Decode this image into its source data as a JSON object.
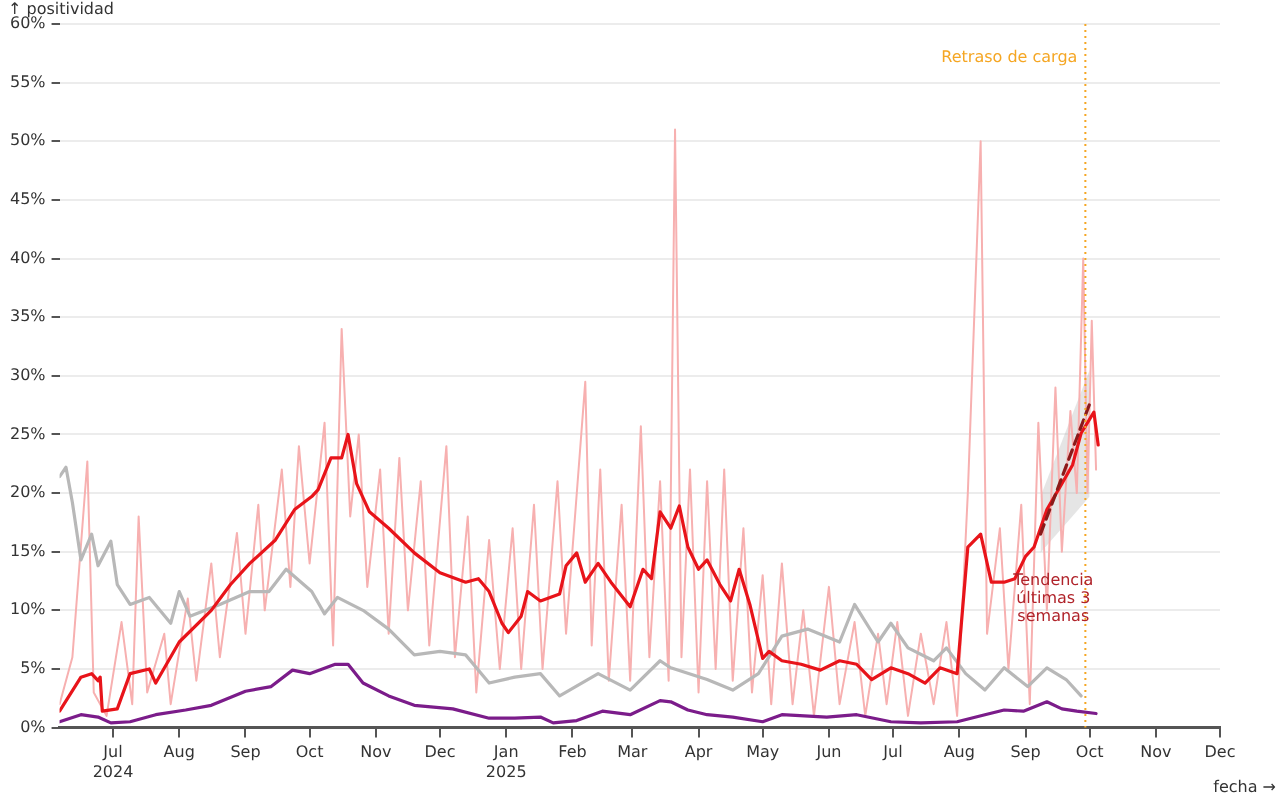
{
  "chart_data": {
    "type": "line",
    "ylabel": "↑ positividad",
    "xlabel": "fecha →",
    "legend": false,
    "grid": "y",
    "marker": "none",
    "xlim": [
      "2024-06-06",
      "2025-12-01"
    ],
    "xticks": [
      {
        "value": "2024-07-01",
        "label": "Jul\n2024"
      },
      {
        "value": "2024-08-01",
        "label": "Aug"
      },
      {
        "value": "2024-09-01",
        "label": "Sep"
      },
      {
        "value": "2024-10-01",
        "label": "Oct"
      },
      {
        "value": "2024-11-01",
        "label": "Nov"
      },
      {
        "value": "2024-12-01",
        "label": "Dec"
      },
      {
        "value": "2025-01-01",
        "label": "Jan\n2025"
      },
      {
        "value": "2025-02-01",
        "label": "Feb"
      },
      {
        "value": "2025-03-01",
        "label": "Mar"
      },
      {
        "value": "2025-04-01",
        "label": "Apr"
      },
      {
        "value": "2025-05-01",
        "label": "May"
      },
      {
        "value": "2025-06-01",
        "label": "Jun"
      },
      {
        "value": "2025-07-01",
        "label": "Jul"
      },
      {
        "value": "2025-08-01",
        "label": "Aug"
      },
      {
        "value": "2025-09-01",
        "label": "Sep"
      },
      {
        "value": "2025-10-01",
        "label": "Oct"
      },
      {
        "value": "2025-11-01",
        "label": "Nov"
      },
      {
        "value": "2025-12-01",
        "label": "Dec"
      }
    ],
    "ylim": [
      0,
      60
    ],
    "yticks": [
      {
        "value": 0,
        "label": "0%"
      },
      {
        "value": 5,
        "label": "5%"
      },
      {
        "value": 10,
        "label": "10%"
      },
      {
        "value": 15,
        "label": "15%"
      },
      {
        "value": 20,
        "label": "20%"
      },
      {
        "value": 25,
        "label": "25%"
      },
      {
        "value": 30,
        "label": "30%"
      },
      {
        "value": 35,
        "label": "35%"
      },
      {
        "value": 40,
        "label": "40%"
      },
      {
        "value": 45,
        "label": "45%"
      },
      {
        "value": 50,
        "label": "50%"
      },
      {
        "value": 55,
        "label": "55%"
      },
      {
        "value": 60,
        "label": "60%"
      }
    ],
    "series": [
      {
        "color": "#f7b0b0",
        "x": [
          "2024-06-06",
          "2024-06-12",
          "2024-06-19",
          "2024-06-22",
          "2024-06-28",
          "2024-07-05",
          "2024-07-10",
          "2024-07-13",
          "2024-07-17",
          "2024-07-25",
          "2024-07-28",
          "2024-08-05",
          "2024-08-09",
          "2024-08-16",
          "2024-08-20",
          "2024-08-28",
          "2024-09-01",
          "2024-09-07",
          "2024-09-10",
          "2024-09-18",
          "2024-09-22",
          "2024-09-26",
          "2024-10-01",
          "2024-10-08",
          "2024-10-12",
          "2024-10-16",
          "2024-10-20",
          "2024-10-24",
          "2024-10-28",
          "2024-11-03",
          "2024-11-07",
          "2024-11-12",
          "2024-11-16",
          "2024-11-22",
          "2024-11-26",
          "2024-12-04",
          "2024-12-08",
          "2024-12-14",
          "2024-12-18",
          "2024-12-24",
          "2024-12-29",
          "2025-01-04",
          "2025-01-08",
          "2025-01-14",
          "2025-01-18",
          "2025-01-25",
          "2025-01-29",
          "2025-02-07",
          "2025-02-10",
          "2025-02-14",
          "2025-02-18",
          "2025-02-24",
          "2025-02-28",
          "2025-03-05",
          "2025-03-09",
          "2025-03-14",
          "2025-03-18",
          "2025-03-21",
          "2025-03-24",
          "2025-03-28",
          "2025-04-01",
          "2025-04-05",
          "2025-04-09",
          "2025-04-13",
          "2025-04-17",
          "2025-04-22",
          "2025-04-26",
          "2025-05-01",
          "2025-05-05",
          "2025-05-10",
          "2025-05-15",
          "2025-05-20",
          "2025-05-25",
          "2025-06-01",
          "2025-06-06",
          "2025-06-13",
          "2025-06-18",
          "2025-06-24",
          "2025-06-28",
          "2025-07-03",
          "2025-07-08",
          "2025-07-14",
          "2025-07-20",
          "2025-07-26",
          "2025-07-31",
          "2025-08-05",
          "2025-08-11",
          "2025-08-14",
          "2025-08-20",
          "2025-08-24",
          "2025-08-30",
          "2025-09-03",
          "2025-09-07",
          "2025-09-11",
          "2025-09-15",
          "2025-09-18",
          "2025-09-22",
          "2025-09-25",
          "2025-09-28",
          "2025-09-30",
          "2025-10-02",
          "2025-10-04"
        ],
        "values": [
          2,
          6,
          22.7,
          3,
          1,
          9,
          2,
          18,
          3,
          8,
          2,
          11,
          4,
          14,
          6,
          16.6,
          8,
          19,
          10,
          22,
          12,
          24,
          14,
          26,
          7,
          34,
          18,
          25,
          12,
          22,
          8,
          23,
          10,
          21,
          7,
          24,
          6,
          18,
          3,
          16,
          5,
          17,
          5,
          19,
          5,
          21,
          8,
          29.5,
          7,
          22,
          4,
          19,
          4,
          25.7,
          6,
          21,
          4,
          51,
          6,
          22,
          3,
          21,
          5,
          22,
          4,
          17,
          3,
          13,
          2,
          14,
          2,
          10,
          1,
          12,
          2,
          9,
          1,
          8,
          2,
          9,
          1,
          8,
          2,
          9,
          1,
          20,
          50,
          8,
          17,
          5,
          19,
          2,
          26,
          10,
          29,
          15,
          27,
          20,
          40,
          20,
          34.7,
          22
        ]
      },
      {
        "color": "#b8b8b8",
        "x": [
          "2024-06-06",
          "2024-06-09",
          "2024-06-12",
          "2024-06-16",
          "2024-06-21",
          "2024-06-24",
          "2024-06-30",
          "2024-07-03",
          "2024-07-09",
          "2024-07-18",
          "2024-07-28",
          "2024-08-01",
          "2024-08-06",
          "2024-08-20",
          "2024-09-03",
          "2024-09-12",
          "2024-09-20",
          "2024-10-02",
          "2024-10-08",
          "2024-10-14",
          "2024-10-26",
          "2024-11-07",
          "2024-11-19",
          "2024-12-01",
          "2024-12-13",
          "2024-12-24",
          "2025-01-05",
          "2025-01-17",
          "2025-01-26",
          "2025-02-13",
          "2025-02-28",
          "2025-03-14",
          "2025-03-19",
          "2025-04-05",
          "2025-04-17",
          "2025-04-29",
          "2025-05-10",
          "2025-05-22",
          "2025-06-06",
          "2025-06-13",
          "2025-06-24",
          "2025-06-30",
          "2025-07-08",
          "2025-07-20",
          "2025-07-26",
          "2025-08-04",
          "2025-08-13",
          "2025-08-22",
          "2025-09-02",
          "2025-09-11",
          "2025-09-20",
          "2025-09-27"
        ],
        "values": [
          21.4,
          22.2,
          19.2,
          14.3,
          16.5,
          13.8,
          15.9,
          12.2,
          10.5,
          11.1,
          8.9,
          11.6,
          9.5,
          10.5,
          11.6,
          11.6,
          13.5,
          11.6,
          9.7,
          11.1,
          10,
          8.4,
          6.2,
          6.5,
          6.2,
          3.8,
          4.3,
          4.6,
          2.7,
          4.6,
          3.2,
          5.7,
          5.1,
          4.1,
          3.2,
          4.6,
          7.8,
          8.4,
          7.3,
          10.5,
          7.3,
          8.9,
          6.8,
          5.7,
          6.8,
          4.6,
          3.2,
          5.1,
          3.5,
          5.1,
          4.1,
          2.7
        ]
      },
      {
        "color": "#7b1c8a",
        "x": [
          "2024-06-06",
          "2024-06-16",
          "2024-06-24",
          "2024-06-30",
          "2024-07-09",
          "2024-07-21",
          "2024-08-04",
          "2024-08-16",
          "2024-09-01",
          "2024-09-13",
          "2024-09-23",
          "2024-10-01",
          "2024-10-13",
          "2024-10-19",
          "2024-10-26",
          "2024-11-07",
          "2024-11-19",
          "2024-12-07",
          "2024-12-24",
          "2025-01-05",
          "2025-01-17",
          "2025-01-23",
          "2025-02-03",
          "2025-02-15",
          "2025-02-28",
          "2025-03-14",
          "2025-03-19",
          "2025-03-27",
          "2025-04-05",
          "2025-04-17",
          "2025-05-01",
          "2025-05-10",
          "2025-05-31",
          "2025-06-14",
          "2025-06-30",
          "2025-07-14",
          "2025-07-31",
          "2025-08-13",
          "2025-08-22",
          "2025-08-31",
          "2025-09-11",
          "2025-09-18",
          "2025-09-25",
          "2025-10-04"
        ],
        "values": [
          0.5,
          1.1,
          0.9,
          0.4,
          0.5,
          1.1,
          1.5,
          1.9,
          3.1,
          3.5,
          4.9,
          4.6,
          5.4,
          5.4,
          3.8,
          2.7,
          1.9,
          1.6,
          0.8,
          0.8,
          0.9,
          0.4,
          0.6,
          1.4,
          1.1,
          2.3,
          2.2,
          1.5,
          1.1,
          0.9,
          0.5,
          1.1,
          0.9,
          1.1,
          0.5,
          0.4,
          0.5,
          1.1,
          1.5,
          1.4,
          2.2,
          1.6,
          1.4,
          1.2
        ]
      },
      {
        "color": "#e8141a",
        "x": [
          "2024-06-06",
          "2024-06-16",
          "2024-06-21",
          "2024-06-24",
          "2024-06-25",
          "2024-06-26",
          "2024-07-03",
          "2024-07-09",
          "2024-07-18",
          "2024-07-21",
          "2024-08-01",
          "2024-08-16",
          "2024-08-25",
          "2024-09-03",
          "2024-09-15",
          "2024-09-24",
          "2024-10-02",
          "2024-10-05",
          "2024-10-11",
          "2024-10-16",
          "2024-10-19",
          "2024-10-23",
          "2024-10-29",
          "2024-11-07",
          "2024-11-19",
          "2024-12-01",
          "2024-12-13",
          "2024-12-19",
          "2024-12-24",
          "2024-12-30",
          "2025-01-02",
          "2025-01-08",
          "2025-01-11",
          "2025-01-17",
          "2025-01-26",
          "2025-01-29",
          "2025-02-03",
          "2025-02-07",
          "2025-02-13",
          "2025-02-19",
          "2025-02-28",
          "2025-03-06",
          "2025-03-10",
          "2025-03-14",
          "2025-03-19",
          "2025-03-23",
          "2025-03-27",
          "2025-04-01",
          "2025-04-05",
          "2025-04-11",
          "2025-04-16",
          "2025-04-20",
          "2025-04-25",
          "2025-05-01",
          "2025-05-04",
          "2025-05-10",
          "2025-05-19",
          "2025-05-28",
          "2025-06-06",
          "2025-06-14",
          "2025-06-21",
          "2025-06-30",
          "2025-07-08",
          "2025-07-16",
          "2025-07-23",
          "2025-07-31",
          "2025-08-05",
          "2025-08-11",
          "2025-08-16",
          "2025-08-22",
          "2025-08-27",
          "2025-09-01",
          "2025-09-05",
          "2025-09-11",
          "2025-09-18",
          "2025-09-23",
          "2025-09-27",
          "2025-10-03",
          "2025-10-05"
        ],
        "values": [
          1.4,
          4.3,
          4.6,
          4,
          4.3,
          1.4,
          1.6,
          4.6,
          5,
          3.8,
          7.3,
          10,
          12.2,
          14,
          16,
          18.6,
          19.7,
          20.3,
          23,
          23,
          25,
          20.8,
          18.4,
          17,
          14.9,
          13.2,
          12.4,
          12.7,
          11.6,
          8.9,
          8.1,
          9.5,
          11.6,
          10.8,
          11.4,
          13.8,
          14.9,
          12.4,
          14,
          12.4,
          10.3,
          13.5,
          12.7,
          18.4,
          17,
          18.9,
          15.4,
          13.5,
          14.3,
          12.2,
          10.8,
          13.5,
          10.5,
          5.9,
          6.5,
          5.7,
          5.4,
          4.9,
          5.7,
          5.4,
          4.1,
          5.1,
          4.6,
          3.8,
          5.1,
          4.6,
          15.4,
          16.5,
          12.4,
          12.4,
          12.7,
          14.6,
          15.4,
          18.6,
          20.8,
          22.4,
          25.1,
          26.9,
          24.1
        ]
      },
      {
        "color": "#8b1a1a",
        "line_style": "dashed",
        "x": [
          "2025-09-08",
          "2025-10-01"
        ],
        "values": [
          16.5,
          27.6
        ],
        "lower": [
          14.9,
          19.7
        ],
        "upper": [
          19.7,
          30.5
        ]
      }
    ],
    "ref_lines": [
      {
        "axis": "x",
        "value": "2025-09-29",
        "label": "Retraso de carga",
        "color": "#f5a623",
        "line_style": "dotted"
      }
    ],
    "annotations": [
      {
        "text": "Tendencia últimas 3 semanas",
        "x": "2025-09-14",
        "y": 11
      }
    ]
  }
}
